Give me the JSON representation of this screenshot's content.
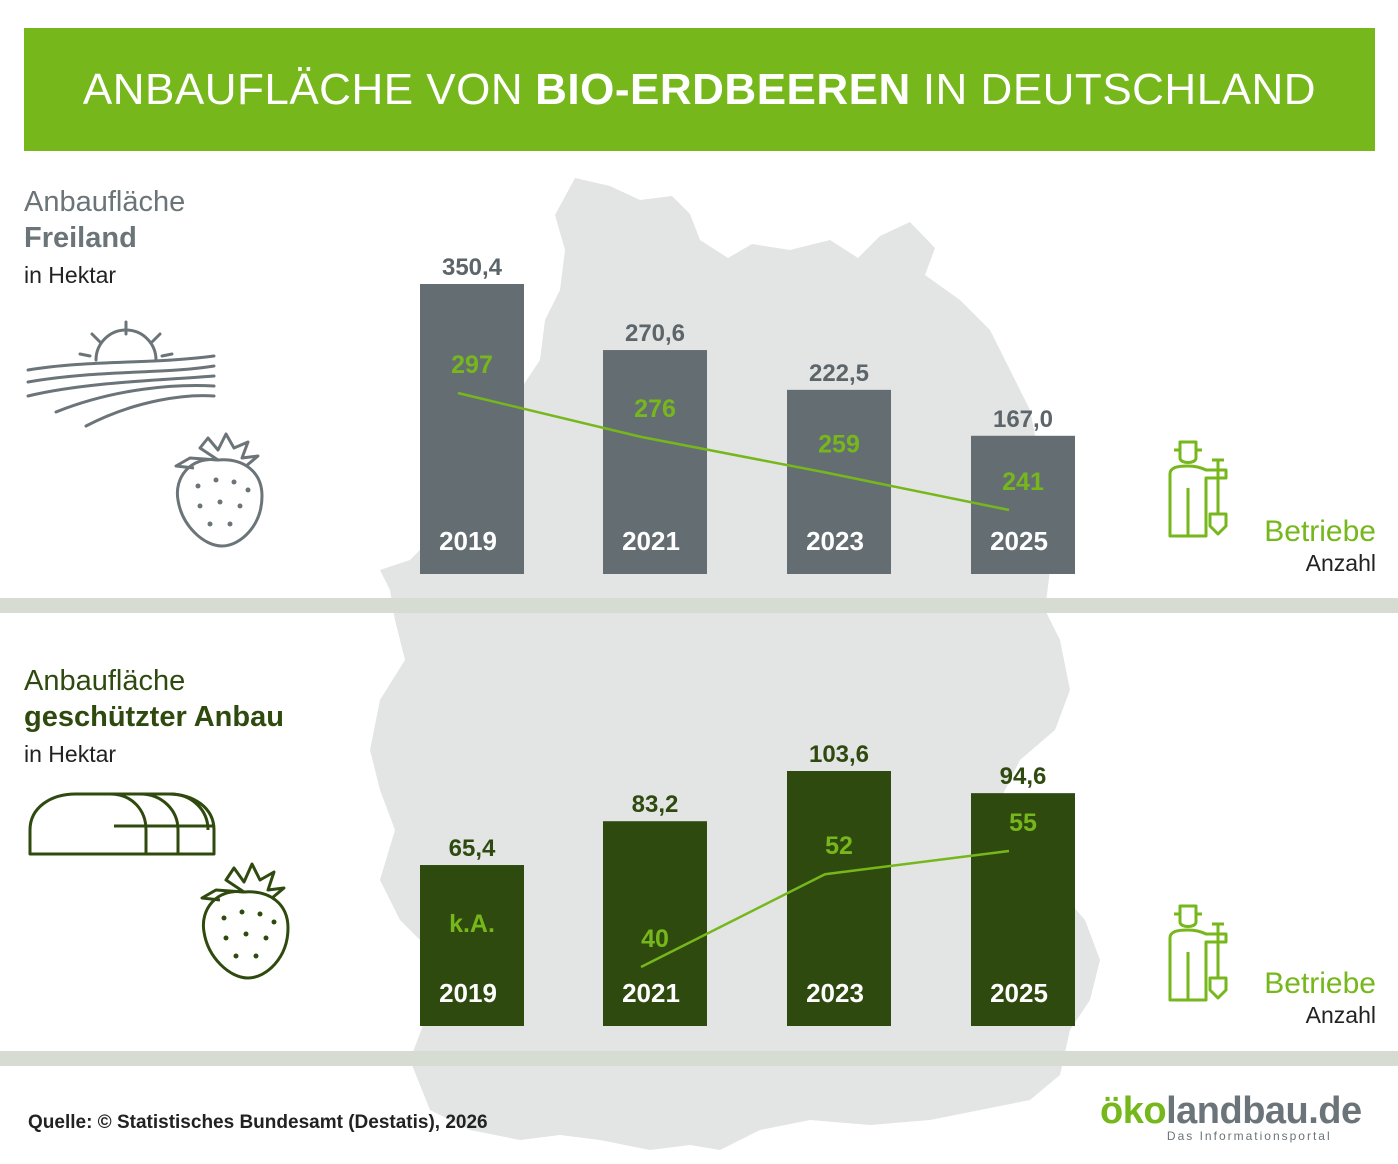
{
  "title": {
    "pre": "ANBAUFLÄCHE VON",
    "bold": "BIO-ERDBEEREN",
    "post": "IN DEUTSCHLAND"
  },
  "colors": {
    "accent": "#76b71c",
    "freiland_bar": "#646e72",
    "anbau_bar": "#2f4a0e",
    "map": "#e3e4e4"
  },
  "freiland": {
    "label1": "Anbaufläche",
    "label2": "Freiland",
    "label3": "in Hektar"
  },
  "anbau": {
    "label1": "Anbaufläche",
    "label2": "geschützter Anbau",
    "label3": "in Hektar"
  },
  "betriebe": {
    "label": "Betriebe",
    "sublabel": "Anzahl"
  },
  "source": "Quelle: © Statistisches Bundesamt (Destatis), 2026",
  "logo": {
    "part1": "ö",
    "part2": "ko",
    "part3": "landbau.de",
    "tagline": "Das Informationsportal"
  },
  "chart_data": [
    {
      "type": "bar",
      "categories": [
        "2019",
        "2021",
        "2023",
        "2025"
      ],
      "values": [
        350.4,
        270.6,
        222.5,
        167.0
      ],
      "value_labels": [
        "350,4",
        "270,6",
        "222,5",
        "167,0"
      ],
      "line_values": [
        297,
        276,
        259,
        241
      ],
      "line_labels": [
        "297",
        "276",
        "259",
        "241"
      ],
      "ylim": [
        0,
        350.4
      ]
    },
    {
      "type": "bar",
      "categories": [
        "2019",
        "2021",
        "2023",
        "2025"
      ],
      "values": [
        65.4,
        83.2,
        103.6,
        94.6
      ],
      "value_labels": [
        "65,4",
        "83,2",
        "103,6",
        "94,6"
      ],
      "line_values": [
        null,
        40,
        52,
        55
      ],
      "line_labels": [
        "k.A.",
        "40",
        "52",
        "55"
      ],
      "ylim": [
        0,
        103.6
      ]
    }
  ]
}
